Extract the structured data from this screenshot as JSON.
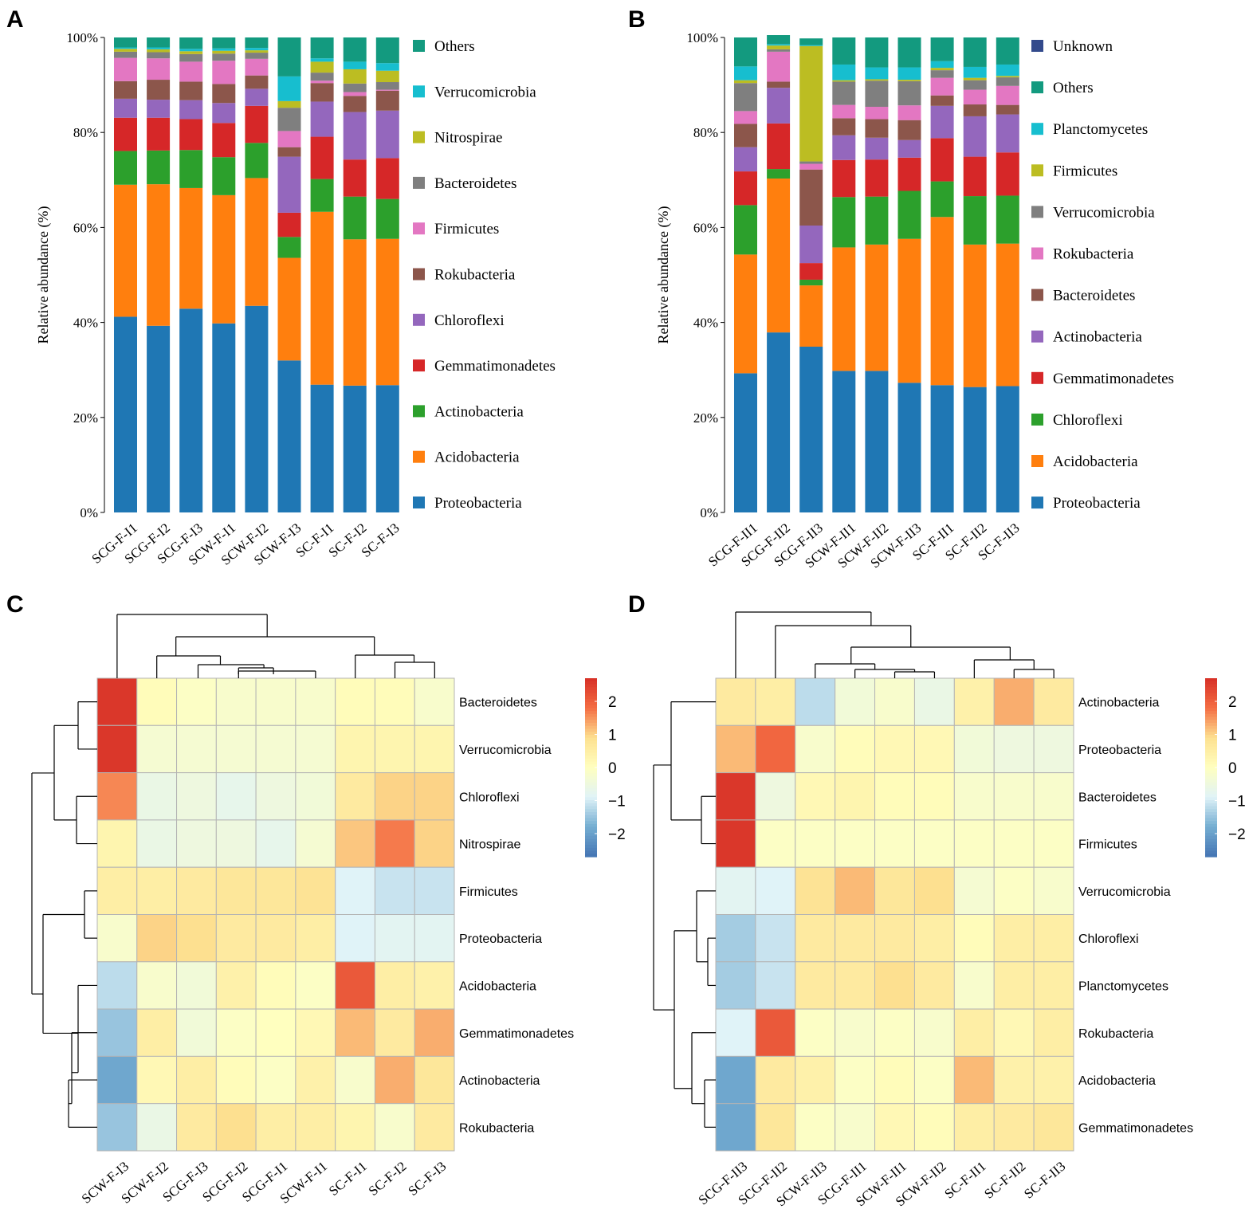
{
  "colors": {
    "Unknown": "#334a8c",
    "Others": "#139a7f",
    "Verrucomicrobia": "#17becf",
    "Nitrospirae": "#bcbd22",
    "Bacteroidetes": "#8c564b",
    "Firmicutes": "#e377c2",
    "Rokubacteria": "#8c564b",
    "Chloroflexi": "#9467bd",
    "Gemmatimonadetes": "#d62728",
    "Actinobacteria": "#2ca02c",
    "Acidobacteria": "#ff7f0e",
    "Proteobacteria": "#1f77b4",
    "Planctomycetes": "#17becf"
  },
  "panels": {
    "A": "A",
    "B": "B",
    "C": "C",
    "D": "D"
  },
  "chart_data": [
    {
      "panel": "A",
      "type": "bar",
      "stacked": true,
      "ylabel": "Relative abundance (%)",
      "ylim": [
        0,
        100
      ],
      "yticks": [
        "0%",
        "20%",
        "40%",
        "60%",
        "80%",
        "100%"
      ],
      "categories": [
        "SCG-F-I1",
        "SCG-F-I2",
        "SCG-F-I3",
        "SCW-F-I1",
        "SCW-F-I2",
        "SCW-F-I3",
        "SC-F-I1",
        "SC-F-I2",
        "SC-F-I3"
      ],
      "legend": [
        "Others",
        "Verrucomicrobia",
        "Nitrospirae",
        "Bacteroidetes",
        "Firmicutes",
        "Rokubacteria",
        "Chloroflexi",
        "Gemmatimonadetes",
        "Actinobacteria",
        "Acidobacteria",
        "Proteobacteria"
      ],
      "series": [
        {
          "name": "Proteobacteria",
          "color": "#1f77b4",
          "values": [
            41.2,
            39.3,
            42.9,
            39.8,
            43.5,
            32.0,
            26.9,
            26.7,
            26.8
          ]
        },
        {
          "name": "Acidobacteria",
          "color": "#ff7f0e",
          "values": [
            27.8,
            29.8,
            25.4,
            27.0,
            26.9,
            21.6,
            36.4,
            30.8,
            30.8
          ]
        },
        {
          "name": "Actinobacteria",
          "color": "#2ca02c",
          "values": [
            7.1,
            7.1,
            8.0,
            8.0,
            7.4,
            4.4,
            6.9,
            9.0,
            8.4
          ]
        },
        {
          "name": "Gemmatimonadetes",
          "color": "#d62728",
          "values": [
            7.0,
            6.9,
            6.5,
            7.2,
            7.8,
            5.1,
            8.9,
            7.8,
            8.6
          ]
        },
        {
          "name": "Chloroflexi",
          "color": "#9467bd",
          "values": [
            4.0,
            3.8,
            4.0,
            4.2,
            3.6,
            11.8,
            7.4,
            10.0,
            10.0
          ]
        },
        {
          "name": "Rokubacteria",
          "color": "#8c564b",
          "values": [
            3.7,
            4.2,
            3.9,
            4.0,
            2.8,
            2.0,
            3.9,
            3.4,
            4.2
          ]
        },
        {
          "name": "Firmicutes",
          "color": "#e377c2",
          "values": [
            4.9,
            4.5,
            4.2,
            4.9,
            3.5,
            3.4,
            0.5,
            0.8,
            0.2
          ]
        },
        {
          "name": "Bacteroidetes",
          "color": "#7f7f7f",
          "values": [
            1.3,
            1.3,
            1.6,
            1.5,
            1.3,
            4.9,
            1.7,
            1.8,
            1.6
          ]
        },
        {
          "name": "Nitrospirae",
          "color": "#bcbd22",
          "values": [
            0.6,
            0.6,
            0.6,
            0.6,
            0.5,
            1.4,
            2.3,
            3.0,
            2.4
          ]
        },
        {
          "name": "Verrucomicrobia",
          "color": "#17becf",
          "values": [
            0.3,
            0.4,
            0.5,
            0.5,
            0.5,
            5.2,
            0.7,
            1.6,
            1.6
          ]
        },
        {
          "name": "Others",
          "color": "#139a7f",
          "values": [
            2.1,
            2.1,
            2.4,
            2.3,
            2.2,
            8.2,
            4.4,
            5.1,
            5.4
          ]
        }
      ]
    },
    {
      "panel": "B",
      "type": "bar",
      "stacked": true,
      "ylabel": "Relative abundance (%)",
      "ylim": [
        0,
        100
      ],
      "yticks": [
        "0%",
        "20%",
        "40%",
        "60%",
        "80%",
        "100%"
      ],
      "categories": [
        "SCG-F-II1",
        "SCG-F-II2",
        "SCG-F-II3",
        "SCW-F-II1",
        "SCW-F-II2",
        "SCW-F-II3",
        "SC-F-II1",
        "SC-F-II2",
        "SC-F-II3"
      ],
      "legend": [
        "Unknown",
        "Others",
        "Planctomycetes",
        "Firmicutes",
        "Verrucomicrobia",
        "Rokubacteria",
        "Bacteroidetes",
        "Actinobacteria",
        "Gemmatimonadetes",
        "Chloroflexi",
        "Acidobacteria",
        "Proteobacteria"
      ],
      "series": [
        {
          "name": "Proteobacteria",
          "color": "#1f77b4",
          "values": [
            29.3,
            37.9,
            34.9,
            29.8,
            29.8,
            27.3,
            26.8,
            26.4,
            26.6
          ]
        },
        {
          "name": "Acidobacteria",
          "color": "#ff7f0e",
          "values": [
            25.0,
            32.4,
            12.9,
            26.0,
            26.6,
            30.3,
            35.4,
            30.0,
            30.0
          ]
        },
        {
          "name": "Chloroflexi",
          "color": "#2ca02c",
          "values": [
            10.4,
            2.0,
            1.2,
            10.6,
            10.1,
            10.1,
            7.5,
            10.2,
            10.1
          ]
        },
        {
          "name": "Gemmatimonadetes",
          "color": "#d62728",
          "values": [
            7.1,
            9.6,
            3.5,
            7.8,
            7.8,
            7.0,
            9.1,
            8.3,
            9.1
          ]
        },
        {
          "name": "Actinobacteria",
          "color": "#9467bd",
          "values": [
            5.1,
            7.5,
            7.9,
            5.2,
            4.6,
            3.7,
            6.8,
            8.5,
            8.0
          ]
        },
        {
          "name": "Bacteroidetes",
          "color": "#8c564b",
          "values": [
            4.9,
            1.3,
            11.8,
            3.6,
            3.9,
            4.2,
            2.2,
            2.5,
            2.0
          ]
        },
        {
          "name": "Rokubacteria",
          "color": "#e377c2",
          "values": [
            2.7,
            6.3,
            1.2,
            2.8,
            2.6,
            3.1,
            3.7,
            3.1,
            4.0
          ]
        },
        {
          "name": "Verrucomicrobia",
          "color": "#7f7f7f",
          "values": [
            5.9,
            0.5,
            0.5,
            4.9,
            5.5,
            5.1,
            1.6,
            2.0,
            1.8
          ]
        },
        {
          "name": "Firmicutes",
          "color": "#bcbd22",
          "values": [
            0.6,
            0.8,
            24.3,
            0.3,
            0.3,
            0.3,
            0.5,
            0.5,
            0.3
          ]
        },
        {
          "name": "Planctomycetes",
          "color": "#17becf",
          "values": [
            2.9,
            0.3,
            0.2,
            3.3,
            2.5,
            2.6,
            1.4,
            2.3,
            2.4
          ]
        },
        {
          "name": "Others",
          "color": "#139a7f",
          "values": [
            6.1,
            1.9,
            1.4,
            5.7,
            6.3,
            6.3,
            5.0,
            6.2,
            5.7
          ]
        },
        {
          "name": "Unknown",
          "color": "#334a8c",
          "values": [
            0,
            0,
            0,
            0,
            0,
            0,
            0,
            0,
            0
          ]
        }
      ]
    },
    {
      "panel": "C",
      "type": "heatmap",
      "columns": [
        "SCW-F-I3",
        "SCW-F-I2",
        "SCG-F-I3",
        "SCG-F-I2",
        "SCG-F-I1",
        "SCW-F-I1",
        "SC-F-I1",
        "SC-F-I2",
        "SC-F-I3"
      ],
      "rows": [
        "Bacteroidetes",
        "Verrucomicrobia",
        "Chloroflexi",
        "Nitrospirae",
        "Firmicutes",
        "Proteobacteria",
        "Acidobacteria",
        "Gemmatimonadetes",
        "Actinobacteria",
        "Rokubacteria"
      ],
      "scale_ticks": [
        "2",
        "1",
        "0",
        "−1",
        "−2"
      ],
      "scale_range": [
        -2.7,
        2.7
      ],
      "values": [
        [
          2.6,
          0.1,
          -0.1,
          -0.2,
          -0.2,
          -0.2,
          0.1,
          0.1,
          -0.2
        ],
        [
          2.6,
          -0.3,
          -0.3,
          -0.3,
          -0.3,
          -0.3,
          0.3,
          0.3,
          0.3
        ],
        [
          1.6,
          -0.6,
          -0.5,
          -0.7,
          -0.5,
          -0.4,
          0.6,
          1.0,
          1.0
        ],
        [
          0.3,
          -0.6,
          -0.5,
          -0.5,
          -0.7,
          -0.3,
          1.1,
          1.7,
          1.0
        ],
        [
          0.5,
          0.5,
          0.6,
          0.7,
          0.7,
          0.8,
          -0.9,
          -1.1,
          -1.1
        ],
        [
          -0.2,
          1.0,
          0.9,
          0.6,
          0.6,
          0.5,
          -0.9,
          -0.8,
          -0.8
        ],
        [
          -1.2,
          -0.2,
          -0.4,
          0.4,
          0.1,
          -0.1,
          2.1,
          0.5,
          0.4
        ],
        [
          -1.5,
          0.5,
          -0.4,
          -0.1,
          0.0,
          0.2,
          1.2,
          0.6,
          1.3
        ],
        [
          -1.9,
          0.2,
          0.5,
          0.1,
          -0.1,
          0.4,
          -0.2,
          1.3,
          0.7
        ],
        [
          -1.5,
          -0.6,
          0.6,
          0.9,
          0.5,
          0.5,
          0.3,
          -0.2,
          0.6
        ]
      ]
    },
    {
      "panel": "D",
      "type": "heatmap",
      "columns": [
        "SCG-F-II3",
        "SCG-F-II2",
        "SCW-F-II3",
        "SCG-F-II1",
        "SCW-F-II1",
        "SCW-F-II2",
        "SC-F-II1",
        "SC-F-II2",
        "SC-F-II3"
      ],
      "rows": [
        "Actinobacteria",
        "Proteobacteria",
        "Bacteroidetes",
        "Firmicutes",
        "Verrucomicrobia",
        "Chloroflexi",
        "Planctomycetes",
        "Rokubacteria",
        "Acidobacteria",
        "Gemmatimonadetes"
      ],
      "scale_ticks": [
        "2",
        "1",
        "0",
        "−1",
        "−2"
      ],
      "scale_range": [
        -2.7,
        2.7
      ],
      "values": [
        [
          0.6,
          0.5,
          -1.2,
          -0.4,
          -0.2,
          -0.6,
          0.4,
          1.3,
          0.6
        ],
        [
          1.2,
          1.9,
          -0.2,
          0.1,
          0.2,
          0.2,
          -0.4,
          -0.5,
          -0.5
        ],
        [
          2.6,
          -0.5,
          0.2,
          0.3,
          0.1,
          0.1,
          -0.2,
          -0.2,
          -0.2
        ],
        [
          2.6,
          -0.1,
          -0.1,
          -0.1,
          -0.1,
          -0.1,
          -0.1,
          -0.1,
          -0.1
        ],
        [
          -0.8,
          -0.9,
          0.8,
          1.2,
          0.7,
          0.9,
          -0.3,
          -0.1,
          -0.2
        ],
        [
          -1.4,
          -1.1,
          0.6,
          0.6,
          0.6,
          0.5,
          0.1,
          0.5,
          0.5
        ],
        [
          -1.4,
          -1.1,
          0.6,
          0.6,
          0.9,
          0.6,
          -0.2,
          0.5,
          0.5
        ],
        [
          -0.9,
          2.1,
          -0.1,
          -0.2,
          -0.1,
          -0.2,
          0.5,
          0.2,
          0.5
        ],
        [
          -1.9,
          0.6,
          0.4,
          -0.1,
          0.1,
          -0.1,
          1.2,
          0.4,
          0.4
        ],
        [
          -1.9,
          0.7,
          -0.1,
          -0.2,
          0.2,
          0.1,
          0.5,
          0.6,
          0.7
        ]
      ]
    }
  ]
}
